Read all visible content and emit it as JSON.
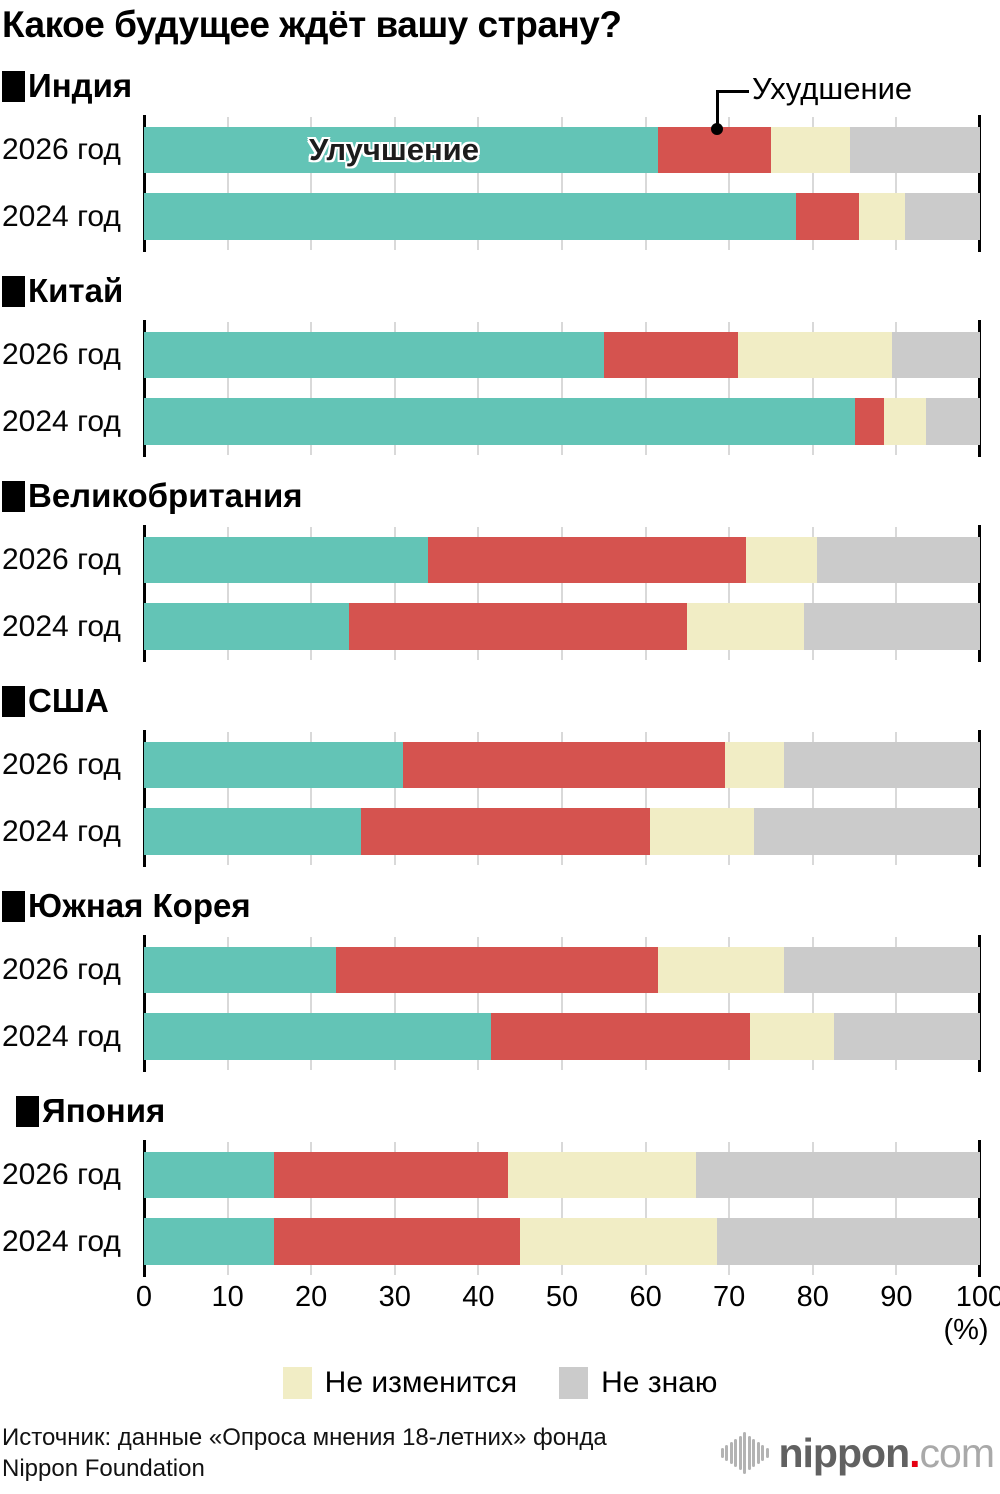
{
  "title": "Какое будущее ждёт вашу страну?",
  "chart_data": {
    "type": "bar",
    "variant": "horizontal-stacked",
    "title": "Какое будущее ждёт вашу страну?",
    "unit_label": "(%)",
    "xlim": [
      0,
      100
    ],
    "x_ticks": [
      0,
      10,
      20,
      30,
      40,
      50,
      60,
      70,
      80,
      90,
      100
    ],
    "grid": true,
    "legend_position": "bottom",
    "segments": [
      {
        "key": "improve",
        "label": "Улучшение",
        "color": "#63c4b6"
      },
      {
        "key": "worsen",
        "label": "Ухудшение",
        "color": "#d5534f"
      },
      {
        "key": "unchanged",
        "label": "Не изменится",
        "color": "#f1edc5"
      },
      {
        "key": "dont-know",
        "label": "Не знаю",
        "color": "#cbcbcb"
      }
    ],
    "groups": [
      {
        "id": "india",
        "country": "Индия",
        "rows": [
          {
            "year": "2026 год",
            "values": [
              61.5,
              13.5,
              9.5,
              15.5
            ]
          },
          {
            "year": "2024 год",
            "values": [
              78,
              7.5,
              5.5,
              9
            ]
          }
        ]
      },
      {
        "id": "china",
        "country": "Китай",
        "rows": [
          {
            "year": "2026 год",
            "values": [
              55,
              16,
              18.5,
              10.5
            ]
          },
          {
            "year": "2024 год",
            "values": [
              85,
              3.5,
              5,
              6.5
            ]
          }
        ]
      },
      {
        "id": "uk",
        "country": "Великобритания",
        "rows": [
          {
            "year": "2026 год",
            "values": [
              34,
              38,
              8.5,
              19.5
            ]
          },
          {
            "year": "2024 год",
            "values": [
              24.5,
              40.5,
              14,
              21
            ]
          }
        ]
      },
      {
        "id": "usa",
        "country": "США",
        "rows": [
          {
            "year": "2026 год",
            "values": [
              31,
              38.5,
              7,
              23.5
            ]
          },
          {
            "year": "2024 год",
            "values": [
              26,
              34.5,
              12.5,
              27
            ]
          }
        ]
      },
      {
        "id": "south-korea",
        "country": "Южная Корея",
        "rows": [
          {
            "year": "2026 год",
            "values": [
              23,
              38.5,
              15,
              23.5
            ]
          },
          {
            "year": "2024 год",
            "values": [
              41.5,
              31,
              10,
              17.5
            ]
          }
        ]
      },
      {
        "id": "japan",
        "country": "Япония",
        "rows": [
          {
            "year": "2026 год",
            "values": [
              15.5,
              28,
              22.5,
              34
            ]
          },
          {
            "year": "2024 год",
            "values": [
              15.5,
              29.5,
              23.5,
              31.5
            ]
          }
        ]
      }
    ]
  },
  "footer": {
    "source_line1": "Источник: данные «Опроса мнения 18-летних» фонда",
    "source_line2": "Nippon Foundation"
  },
  "brand": {
    "head": "nippon",
    "dot": ".",
    "tail": "com"
  }
}
